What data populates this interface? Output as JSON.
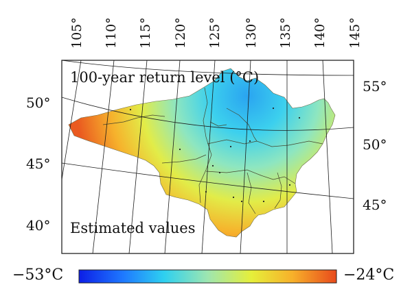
{
  "map": {
    "top_longitudes": [
      "105°",
      "110°",
      "115°",
      "120°",
      "125°",
      "130°",
      "135°",
      "140°",
      "145°"
    ],
    "left_latitudes": [
      "50°",
      "45°",
      "40°"
    ],
    "right_latitudes": [
      "55°",
      "50°",
      "45°"
    ],
    "title": "100-year return level (°C)",
    "subtitle": "Estimated values"
  },
  "colorbar": {
    "min_label": "−53°C",
    "max_label": "−24°C",
    "colors": [
      "#0c1ee6",
      "#1e78ff",
      "#2ed0f0",
      "#9ee6b0",
      "#e6ef3a",
      "#f7b02a",
      "#e84a1c"
    ]
  }
}
